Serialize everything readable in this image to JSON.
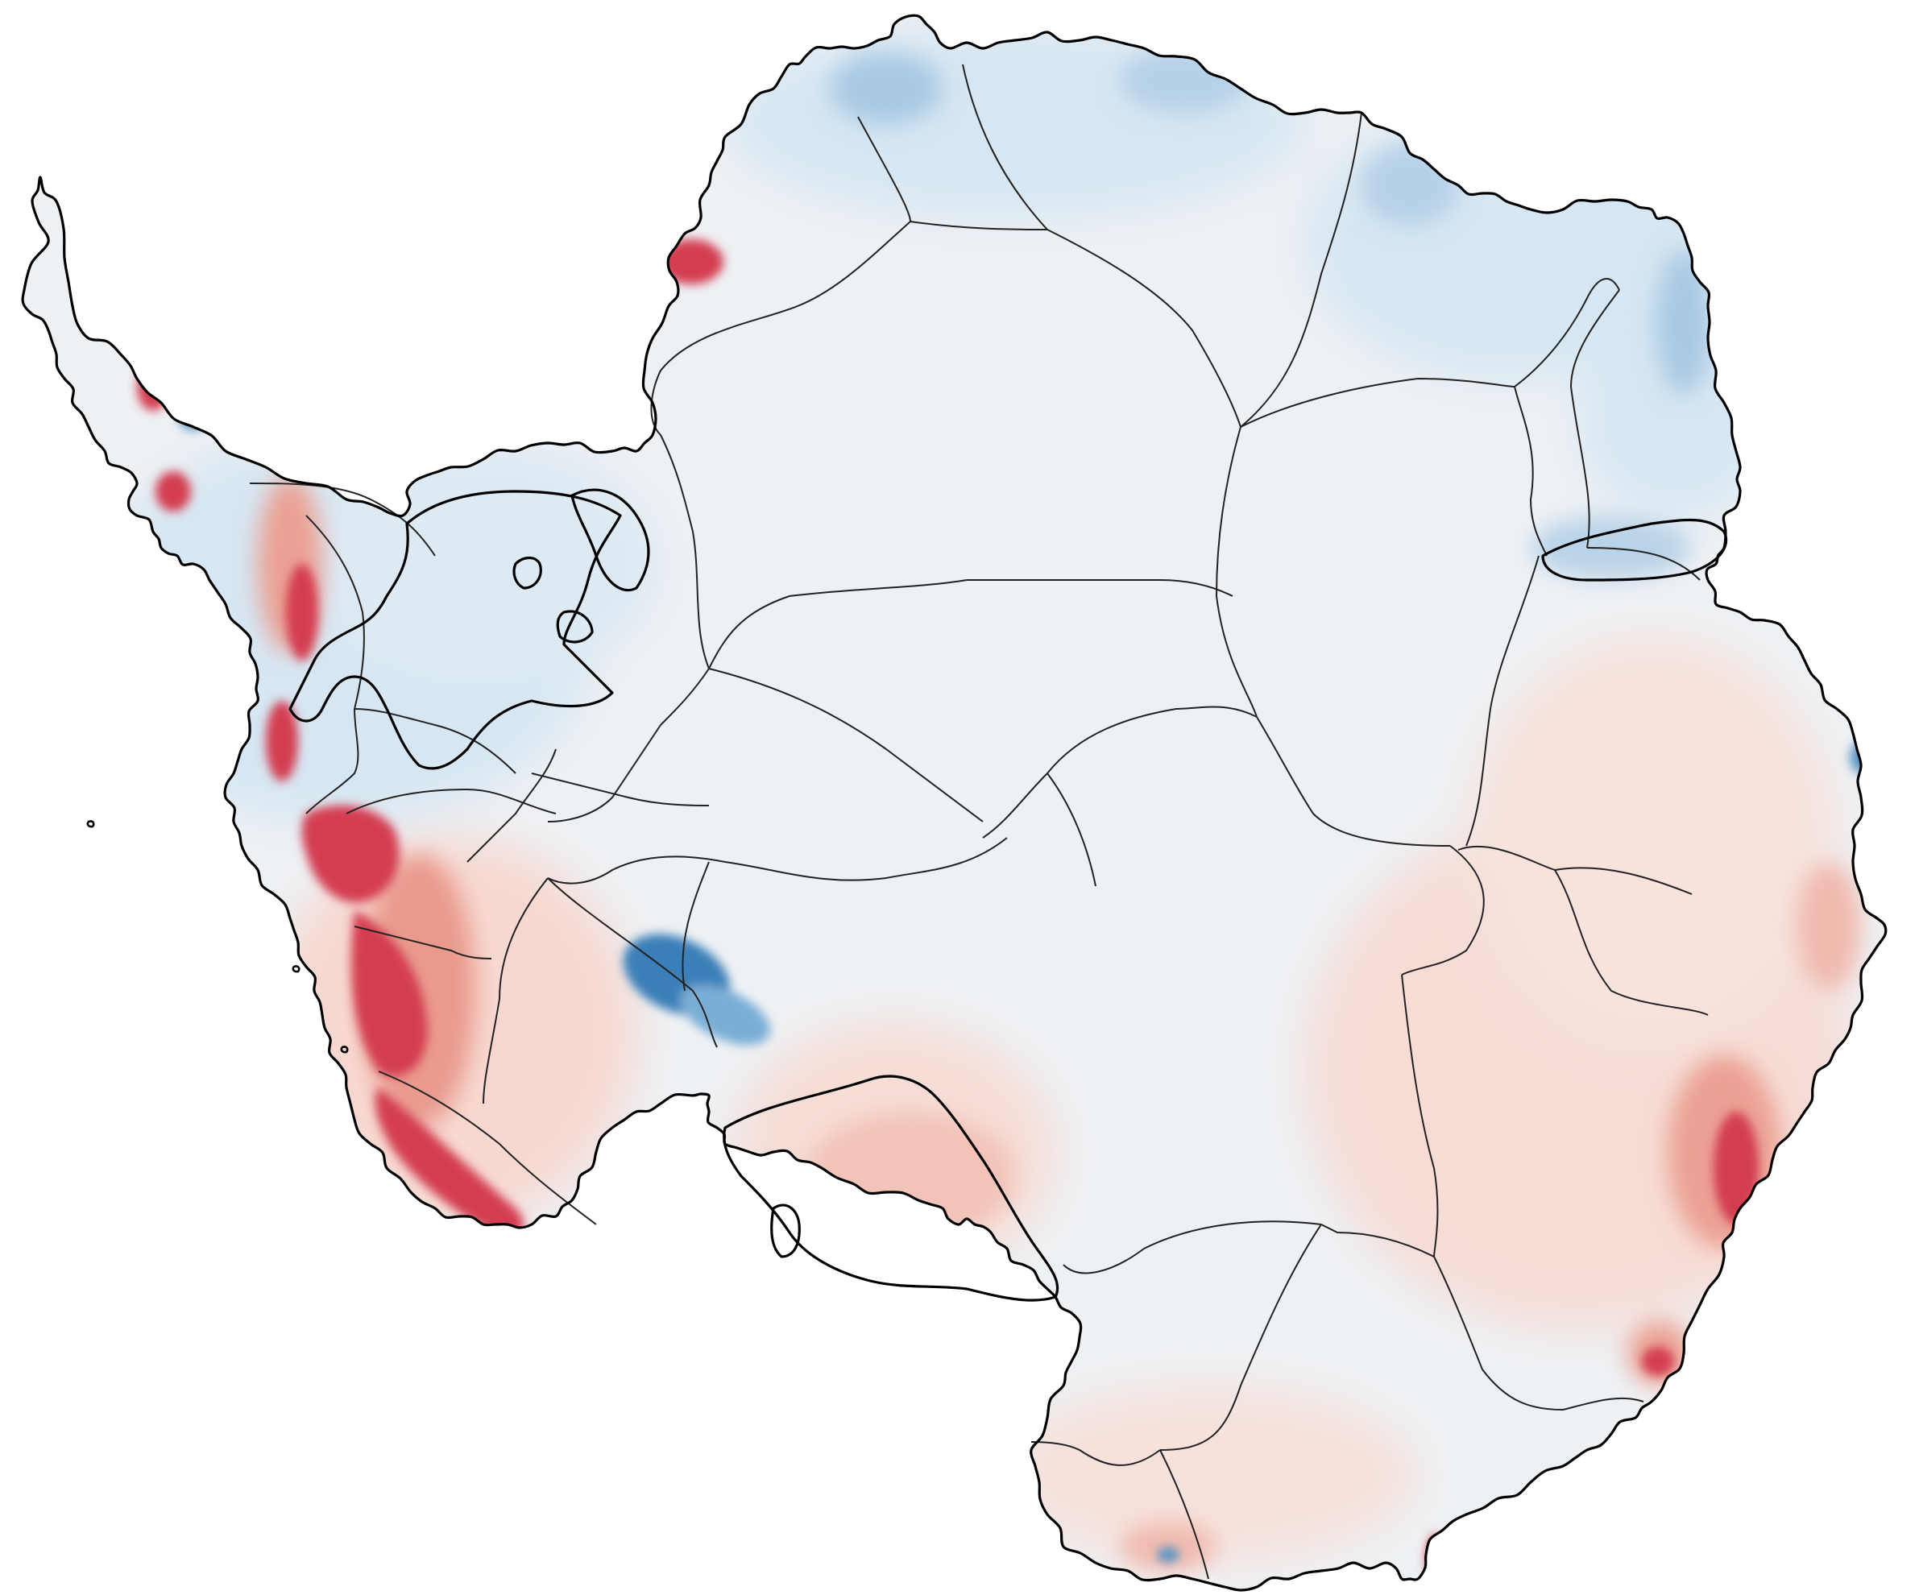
{
  "map": {
    "type": "choropleth-map",
    "subject": "Antarctica",
    "labels_shown": false,
    "colors": {
      "background": "#ffffff",
      "land_base": "#eef1f4",
      "red_strong": "#d43d51",
      "red_mid": "#e88a80",
      "red_light": "#f7d3cb",
      "blue_strong": "#3a7fb8",
      "blue_mid": "#8cb8d9",
      "blue_light": "#d6e6f2",
      "outline": "#000000",
      "basin_lines": "#222222"
    }
  }
}
